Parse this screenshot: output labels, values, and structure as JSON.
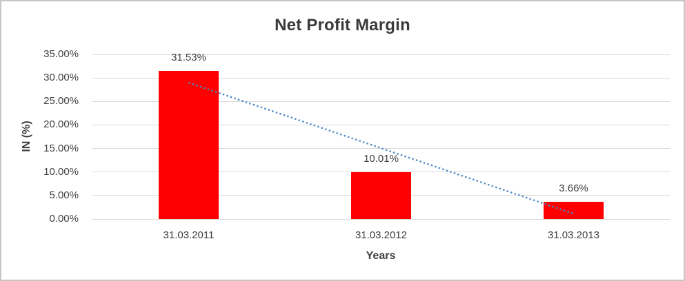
{
  "chart_data": {
    "type": "bar",
    "title": "Net Profit Margin",
    "xlabel": "Years",
    "ylabel": "IN (%)",
    "categories": [
      "31.03.2011",
      "31.03.2012",
      "31.03.2013"
    ],
    "values": [
      31.53,
      10.01,
      3.66
    ],
    "data_labels": [
      "31.53%",
      "10.01%",
      "3.66%"
    ],
    "ylim": [
      0,
      35
    ],
    "ytick_step": 5,
    "ytick_labels": [
      "0.00%",
      "5.00%",
      "10.00%",
      "15.00%",
      "20.00%",
      "25.00%",
      "30.00%",
      "35.00%"
    ],
    "grid": true,
    "legend": "none",
    "bar_color": "#ff0000",
    "gridline_color": "#d9d9d9",
    "text_color": "#404040",
    "trendline": {
      "type": "linear",
      "style": "dotted",
      "color": "#4d87c7",
      "start_value": 29.0,
      "end_value": 1.13
    }
  }
}
